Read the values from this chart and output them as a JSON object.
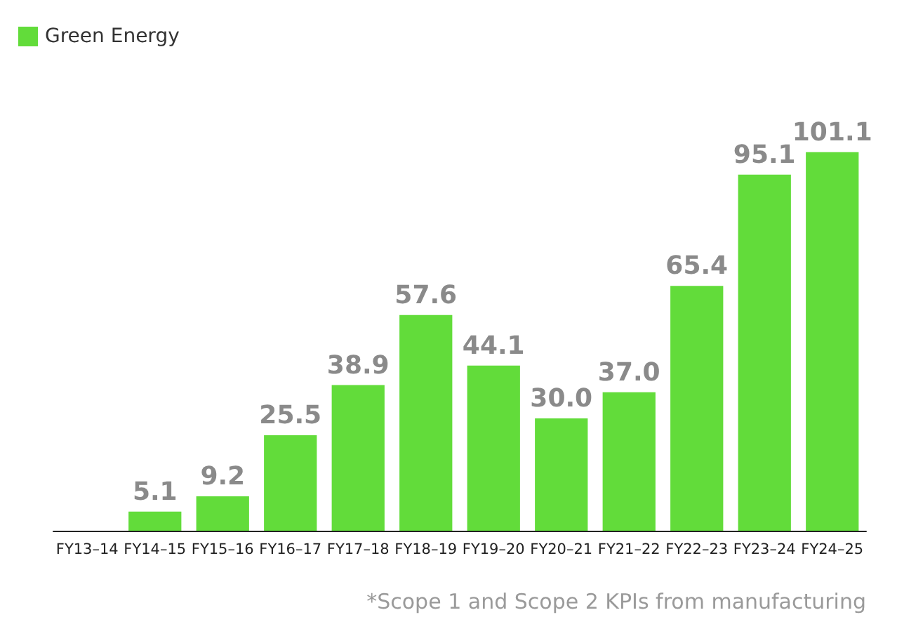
{
  "chart_data": {
    "type": "bar",
    "categories": [
      "FY13–14",
      "FY14–15",
      "FY15–16",
      "FY16–17",
      "FY17–18",
      "FY18–19",
      "FY19–20",
      "FY20–21",
      "FY21–22",
      "FY22–23",
      "FY23–24",
      "FY24–25"
    ],
    "series": [
      {
        "name": "Green Energy",
        "color": "#62dc3a",
        "values": [
          null,
          5.1,
          9.2,
          25.5,
          38.9,
          57.6,
          44.1,
          30.0,
          37.0,
          65.4,
          95.1,
          101.1
        ],
        "value_labels": [
          null,
          "5.1",
          "9.2",
          "25.5",
          "38.9",
          "57.6",
          "44.1",
          "30.0",
          "37.0",
          "65.4",
          "95.1",
          "101.1"
        ]
      }
    ],
    "legend": "top left",
    "grid": false,
    "tick_labels": "x",
    "annotations": [
      "*Scope 1 and Scope 2 KPIs from manufacturing"
    ]
  }
}
